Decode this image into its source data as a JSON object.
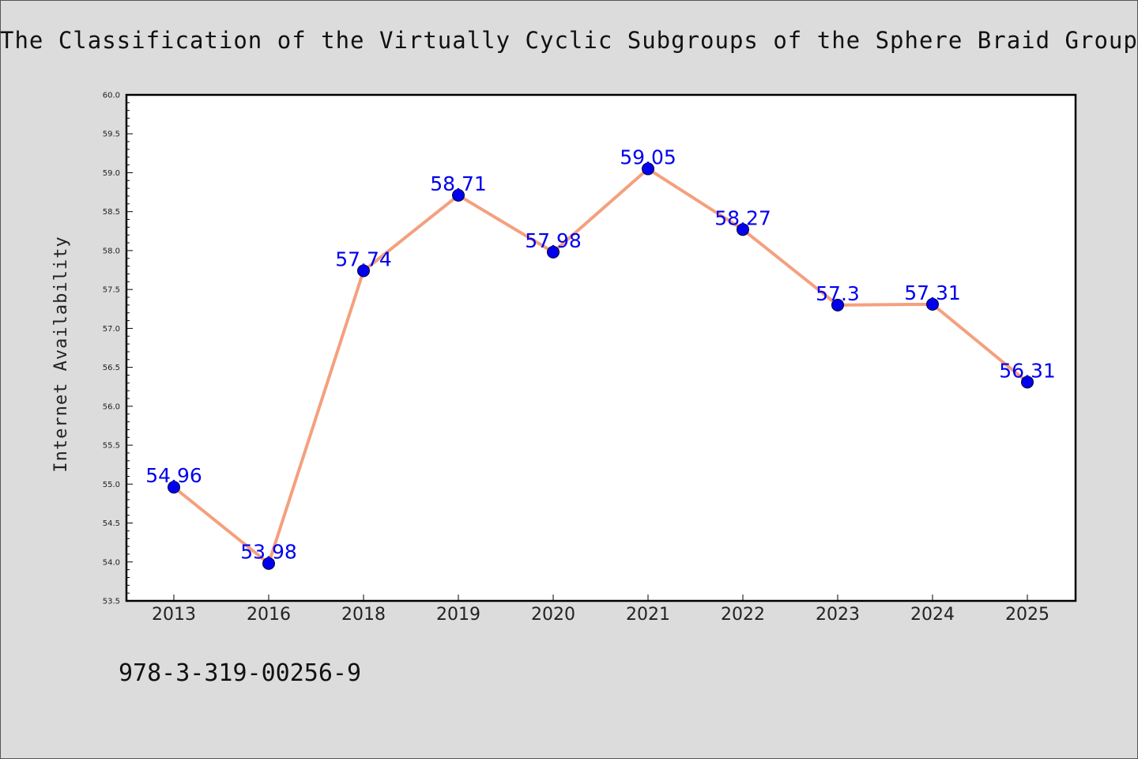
{
  "header": {
    "title": "The Classification of the Virtually Cyclic Subgroups of the Sphere Braid Groups"
  },
  "footer": {
    "isbn": "978-3-319-00256-9"
  },
  "colors": {
    "background": "#dcdcdc",
    "plot_background": "#ffffff",
    "line": "#f4a07e",
    "marker": "#0000ee",
    "data_label": "#0000ee"
  },
  "chart_data": {
    "type": "line",
    "title": "The Classification of the Virtually Cyclic Subgroups of the Sphere Braid Groups",
    "xlabel": "",
    "ylabel": "Internet Availability",
    "categories": [
      "2013",
      "2016",
      "2018",
      "2019",
      "2020",
      "2021",
      "2022",
      "2023",
      "2024",
      "2025"
    ],
    "values": [
      54.96,
      53.98,
      57.74,
      58.71,
      57.98,
      59.05,
      58.27,
      57.3,
      57.31,
      56.31
    ],
    "data_labels": [
      "54.96",
      "53.98",
      "57.74",
      "58.71",
      "57.98",
      "59.05",
      "58.27",
      "57.3",
      "57.31",
      "56.31"
    ],
    "ylim": [
      53.5,
      60.0
    ],
    "yticks": [
      "53.5",
      "54.0",
      "54.5",
      "55.0",
      "55.5",
      "56.0",
      "56.5",
      "57.0",
      "57.5",
      "58.0",
      "58.5",
      "59.0",
      "59.5",
      "60.0"
    ],
    "grid": false,
    "legend": "none"
  }
}
